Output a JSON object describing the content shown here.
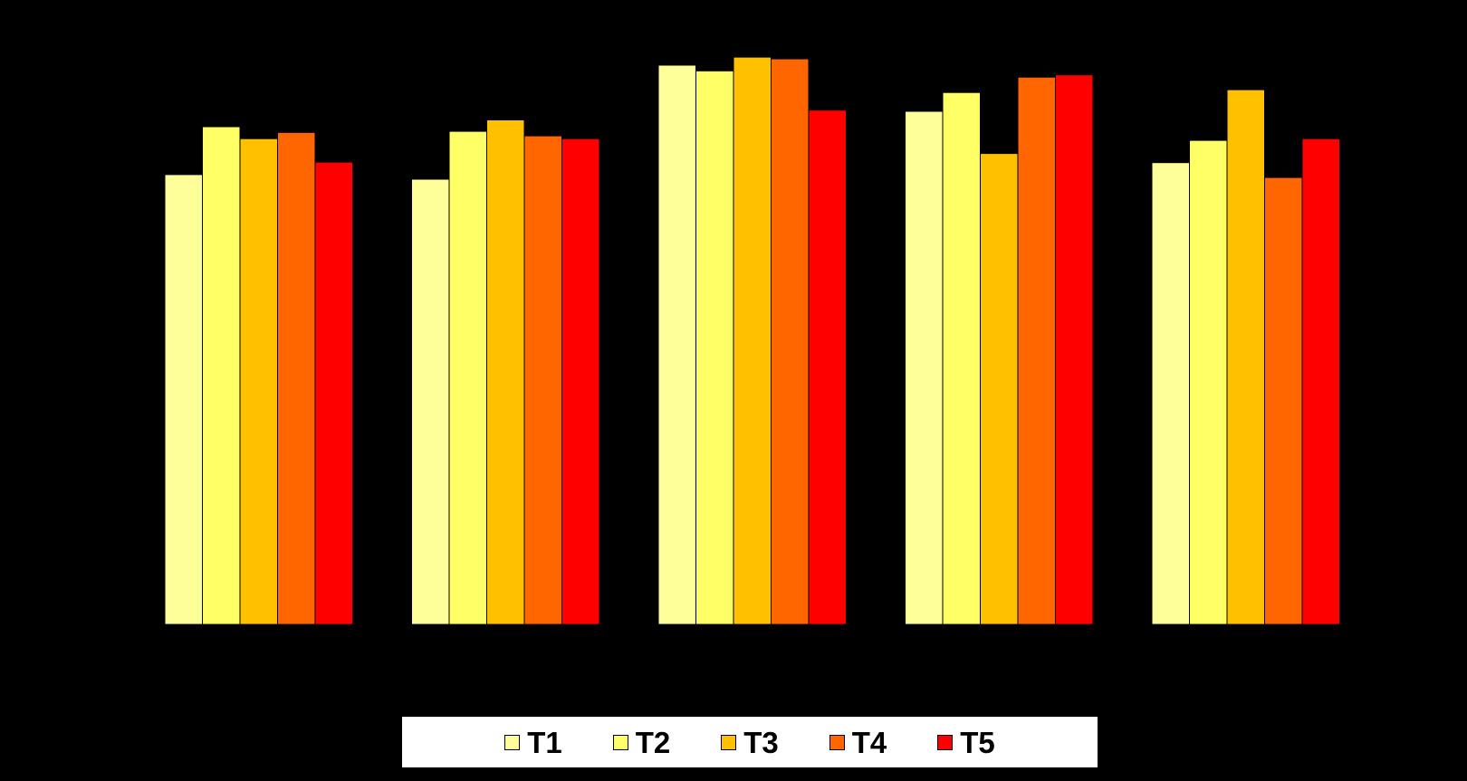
{
  "chart_data": {
    "type": "bar",
    "title": "",
    "xlabel": "",
    "ylabel": "",
    "categories": [
      "",
      "",
      "",
      "",
      ""
    ],
    "ylim": [
      0,
      100
    ],
    "grid": false,
    "legend_position": "bottom",
    "series": [
      {
        "name": "T1",
        "color": "#ffff99",
        "values": [
          78.9,
          78.1,
          98.1,
          90.0,
          81.0
        ]
      },
      {
        "name": "T2",
        "color": "#ffff66",
        "values": [
          87.3,
          86.5,
          97.1,
          93.3,
          84.9
        ]
      },
      {
        "name": "T3",
        "color": "#ffc000",
        "values": [
          85.2,
          88.5,
          99.5,
          82.6,
          93.8
        ]
      },
      {
        "name": "T4",
        "color": "#ff6600",
        "values": [
          86.3,
          85.7,
          99.2,
          96.0,
          78.4
        ]
      },
      {
        "name": "T5",
        "color": "#ff0000",
        "values": [
          81.1,
          85.2,
          90.2,
          96.4,
          85.2
        ]
      }
    ]
  }
}
